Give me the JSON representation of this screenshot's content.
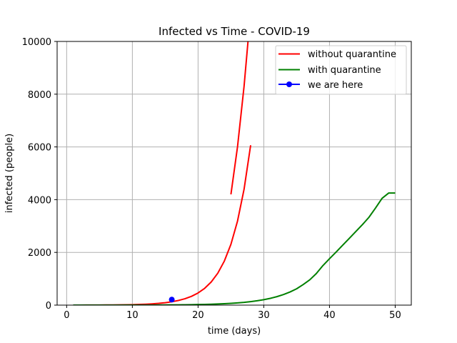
{
  "chart_data": {
    "type": "line",
    "title": "Infected vs Time - COVID-19",
    "xlabel": "time (days)",
    "ylabel": "infected (people)",
    "xlim": [
      -1.45,
      52.45
    ],
    "ylim": [
      0,
      10000
    ],
    "xticks": [
      0,
      10,
      20,
      30,
      40,
      50
    ],
    "yticks": [
      0,
      2000,
      4000,
      6000,
      8000,
      10000
    ],
    "grid": true,
    "legend_position": "top-right",
    "series": [
      {
        "name": "without quarantine",
        "color": "#ff0000",
        "marker": "none",
        "x": [
          1,
          2,
          3,
          4,
          5,
          6,
          7,
          8,
          9,
          10,
          11,
          12,
          13,
          14,
          15,
          16,
          17,
          18,
          19,
          20,
          21,
          22,
          23,
          24,
          25,
          26,
          27,
          28
        ],
        "y": [
          1,
          1.4,
          1.9,
          2.7,
          3.7,
          5.1,
          7,
          9.7,
          13.4,
          18.5,
          25.5,
          35,
          48.5,
          67,
          92,
          127,
          176,
          242,
          334,
          461,
          636,
          878,
          1211,
          1672,
          2307,
          3184,
          4394,
          6063
        ]
      },
      {
        "name": "without quarantine",
        "color": "#ff0000",
        "marker": "none",
        "x": [
          25,
          26,
          27,
          27.6
        ],
        "y": [
          4200,
          6000,
          8300,
          10000
        ]
      },
      {
        "name": "with quarantine",
        "color": "#008000",
        "marker": "none",
        "x": [
          1,
          2,
          3,
          4,
          5,
          6,
          7,
          8,
          9,
          10,
          11,
          12,
          13,
          14,
          15,
          16,
          17,
          18,
          19,
          20,
          21,
          22,
          23,
          24,
          25,
          26,
          27,
          28,
          29,
          30,
          31,
          32,
          33,
          34,
          35,
          36,
          37,
          38,
          39,
          40,
          41,
          42,
          43,
          44,
          45,
          46,
          47,
          48,
          49,
          50
        ],
        "y": [
          0.4,
          0.5,
          0.6,
          0.7,
          0.8,
          1,
          1.3,
          1.6,
          2,
          2.5,
          3.1,
          3.8,
          4.8,
          6,
          7.5,
          9.4,
          11.7,
          14.6,
          18,
          23,
          28,
          35,
          44,
          55,
          68,
          85,
          106,
          133,
          165,
          206,
          258,
          322,
          401,
          500,
          620,
          780,
          960,
          1200,
          1500,
          1760,
          2010,
          2270,
          2530,
          2790,
          3050,
          3330,
          3680,
          4050,
          4250,
          4250
        ]
      },
      {
        "name": "we are here",
        "color": "#0000ff",
        "marker": "circle",
        "x": [
          16
        ],
        "y": [
          210
        ]
      }
    ],
    "legend": [
      {
        "label": "without quarantine",
        "color": "#ff0000",
        "marker": "none"
      },
      {
        "label": "with quarantine",
        "color": "#008000",
        "marker": "none"
      },
      {
        "label": "we are here",
        "color": "#0000ff",
        "marker": "circle"
      }
    ]
  }
}
